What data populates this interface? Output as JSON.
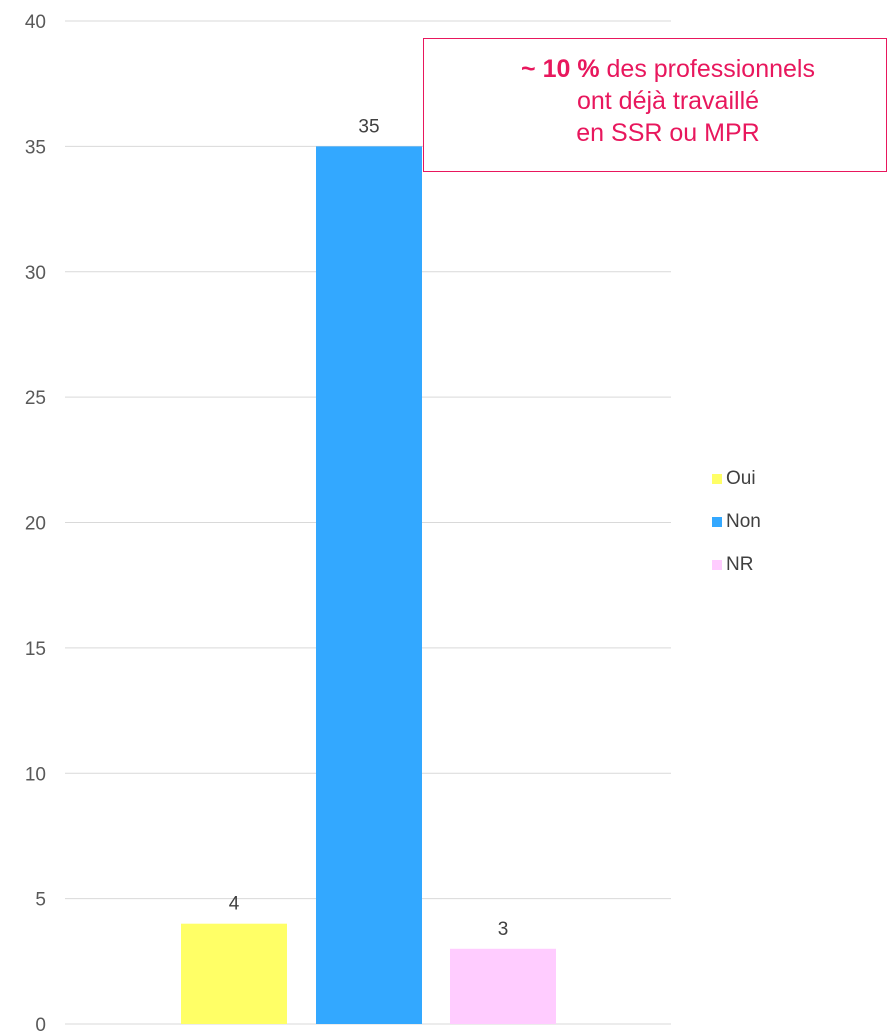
{
  "chart_data": {
    "type": "bar",
    "categories": [
      "Oui",
      "Non",
      "NR"
    ],
    "values": [
      4,
      35,
      3
    ],
    "colors": [
      "#ffff66",
      "#33a8ff",
      "#ffccff"
    ],
    "ylim": [
      0,
      40
    ],
    "yticks": [
      0,
      5,
      10,
      15,
      20,
      25,
      30,
      35,
      40
    ],
    "grid": true,
    "legend": {
      "placement": "right",
      "entries": [
        "Oui",
        "Non",
        "NR"
      ]
    },
    "data_labels": [
      "4",
      "35",
      "3"
    ]
  },
  "annotation": {
    "bold": "~ 10 %",
    "line1_rest": " des professionnels",
    "line2": "ont déjà travaillé",
    "line3": "en SSR ou MPR",
    "color": "#e8175d"
  }
}
